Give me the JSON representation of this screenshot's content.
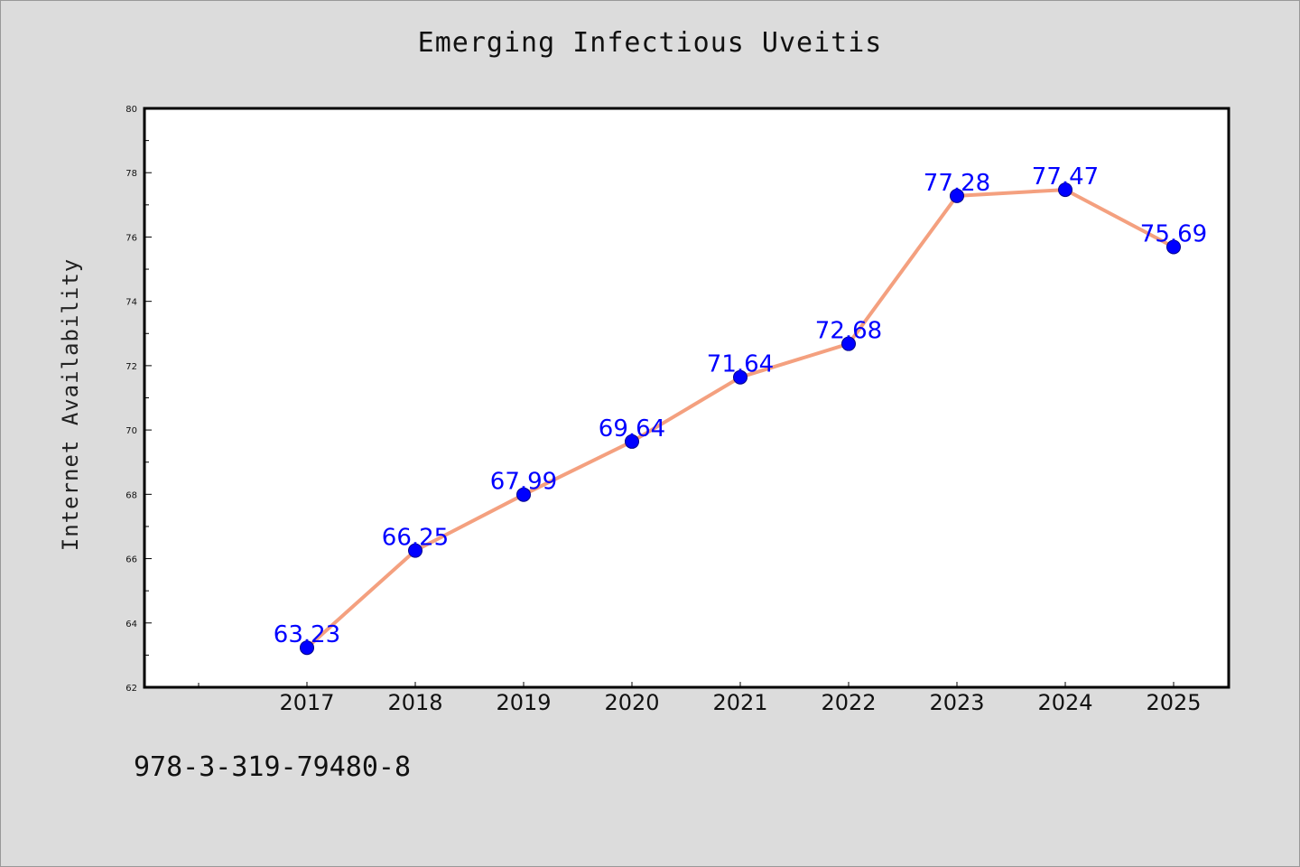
{
  "chart_data": {
    "type": "line",
    "title": "Emerging Infectious Uveitis",
    "xlabel": "",
    "ylabel": "Internet Availability",
    "categories": [
      "2017",
      "2018",
      "2019",
      "2020",
      "2021",
      "2022",
      "2023",
      "2024",
      "2025"
    ],
    "series": [
      {
        "values": [
          63.23,
          66.25,
          67.99,
          69.64,
          71.64,
          72.68,
          77.28,
          77.47,
          75.69
        ],
        "labels": [
          "63.23",
          "66.25",
          "67.99",
          "69.64",
          "71.64",
          "72.68",
          "77.28",
          "77.47",
          "75.69"
        ]
      }
    ],
    "ylim": [
      62,
      80
    ],
    "yticks": [
      "62",
      "64",
      "66",
      "68",
      "70",
      "72",
      "74",
      "76",
      "78",
      "80"
    ],
    "grid": false,
    "legend": "none",
    "line_color": "#f4a07f",
    "marker_color": "#0000ff",
    "label_color": "#0000ff"
  },
  "footer": {
    "code": "978-3-319-79480-8"
  }
}
